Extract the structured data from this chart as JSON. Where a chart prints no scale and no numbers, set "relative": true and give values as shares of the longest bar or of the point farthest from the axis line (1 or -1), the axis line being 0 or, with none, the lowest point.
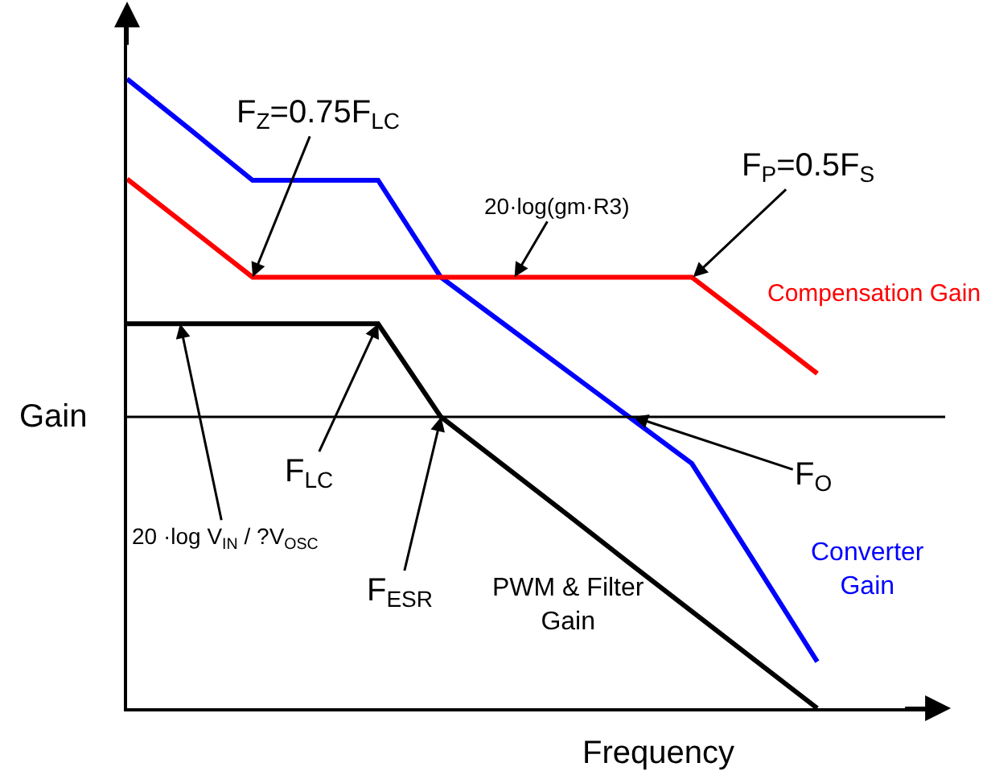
{
  "chart_data": {
    "type": "line",
    "relative": true,
    "xlabel": "Frequency",
    "ylabel": "Gain",
    "categories": [
      null,
      null,
      null,
      null,
      null,
      null,
      null,
      null,
      null,
      null,
      null,
      null
    ],
    "grid": false,
    "legend": false,
    "marker": "none",
    "line_style": "solid",
    "series": [
      {
        "name": "Converter Gain",
        "color": "#0000ff",
        "values": [
          1,
          0.92,
          0.839,
          0.839,
          0.839,
          0.685,
          0.611,
          0.537,
          0.463,
          0.389,
          0.232,
          0.074
        ]
      },
      {
        "name": "Compensation Gain",
        "color": "#ff0000",
        "values": [
          0.841,
          0.763,
          0.685,
          0.685,
          0.685,
          0.685,
          0.685,
          0.685,
          0.685,
          0.685,
          0.609,
          0.532
        ]
      },
      {
        "name": "PWM & Filter Gain",
        "color": "#000000",
        "values": [
          0.611,
          0.611,
          0.611,
          0.611,
          0.611,
          0.463,
          0.386,
          0.309,
          0.231,
          0.154,
          0.077,
          0
        ]
      }
    ],
    "ref_lines": [
      {
        "axis": "y",
        "value": 0.463,
        "color": "#000000"
      }
    ],
    "annotations": [
      "F$_{Z}$=0.75F$_{LC}$",
      "F$_{P}$=0.5F$_{S}$",
      "20·log(gm·R3)",
      "F$_{LC}$",
      "20 ·log V$_{IN}$ / ?V$_{OSC}$",
      "F$_{ESR}$",
      "F$_{O}$"
    ]
  }
}
